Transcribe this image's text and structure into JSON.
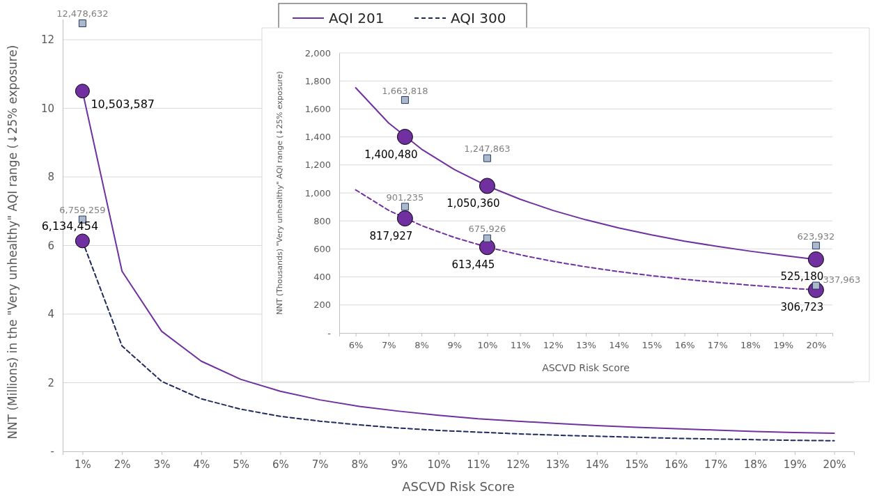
{
  "chart_data": [
    {
      "type": "line",
      "xlabel": "ASCVD Risk Score",
      "ylabel": "NNT (Millions) in the  \"Very unhealthy\" AQI range (↓25% exposure)",
      "x": [
        1,
        2,
        3,
        4,
        5,
        6,
        7,
        8,
        9,
        10,
        11,
        12,
        13,
        14,
        15,
        16,
        17,
        18,
        19,
        20
      ],
      "xlim": [
        0.5,
        20.5
      ],
      "xticks": [
        {
          "value": 1,
          "label": "1%"
        },
        {
          "value": 2,
          "label": "2%"
        },
        {
          "value": 3,
          "label": "3%"
        },
        {
          "value": 4,
          "label": "4%"
        },
        {
          "value": 5,
          "label": "5%"
        },
        {
          "value": 6,
          "label": "6%"
        },
        {
          "value": 7,
          "label": "7%"
        },
        {
          "value": 8,
          "label": "8%"
        },
        {
          "value": 9,
          "label": "9%"
        },
        {
          "value": 10,
          "label": "10%"
        },
        {
          "value": 11,
          "label": "11%"
        },
        {
          "value": 12,
          "label": "12%"
        },
        {
          "value": 13,
          "label": "13%"
        },
        {
          "value": 14,
          "label": "14%"
        },
        {
          "value": 15,
          "label": "15%"
        },
        {
          "value": 16,
          "label": "16%"
        },
        {
          "value": 17,
          "label": "17%"
        },
        {
          "value": 18,
          "label": "18%"
        },
        {
          "value": 19,
          "label": "19%"
        },
        {
          "value": 20,
          "label": "20%"
        }
      ],
      "ylim": [
        0,
        12.6
      ],
      "yticks": [
        {
          "value": 0,
          "label": "-"
        },
        2,
        4,
        6,
        8,
        10,
        12
      ],
      "grid": "y",
      "legend": "top",
      "series": [
        {
          "name": "AQI 201",
          "color": "#7030a0",
          "line_style": "solid",
          "marker": "none",
          "values": [
            10.5,
            5.25,
            3.5,
            2.63,
            2.1,
            1.75,
            1.5,
            1.31,
            1.17,
            1.05,
            0.95,
            0.88,
            0.81,
            0.75,
            0.7,
            0.66,
            0.62,
            0.58,
            0.55,
            0.53
          ]
        },
        {
          "name": "AQI 300",
          "color": "#1f2a5c",
          "line_style": "dashed",
          "marker": "none",
          "values": [
            6.13,
            3.07,
            2.04,
            1.53,
            1.23,
            1.02,
            0.88,
            0.77,
            0.68,
            0.61,
            0.56,
            0.51,
            0.47,
            0.44,
            0.41,
            0.38,
            0.36,
            0.34,
            0.32,
            0.31
          ]
        },
        {
          "type": "scatter",
          "color": "#7030a0",
          "marker": "circle",
          "x": [
            1,
            1
          ],
          "values": [
            10.503587,
            6.134454
          ]
        },
        {
          "type": "scatter",
          "color": "#adb9ca",
          "marker": "square",
          "x": [
            1,
            1
          ],
          "values": [
            12.478632,
            6.759259
          ]
        }
      ],
      "annotations": [
        {
          "text": "10,503,587",
          "x": 1,
          "y": 10.503587
        },
        {
          "text": "6,134,454",
          "x": 1,
          "y": 6.134454
        },
        {
          "text": "12,478,632",
          "x": 1,
          "y": 12.478632
        },
        {
          "text": "6,759,259",
          "x": 1,
          "y": 6.759259
        }
      ]
    },
    {
      "type": "line",
      "xlabel": "ASCVD Risk Score",
      "ylabel": "NNT (Thousands)  \"Very unhealthy\" AQI range (↓25% exposure)",
      "x": [
        6,
        7,
        8,
        9,
        10,
        11,
        12,
        13,
        14,
        15,
        16,
        17,
        18,
        19,
        20
      ],
      "xlim": [
        5.5,
        20.5
      ],
      "xticks": [
        {
          "value": 6,
          "label": "6%"
        },
        {
          "value": 7,
          "label": "7%"
        },
        {
          "value": 8,
          "label": "8%"
        },
        {
          "value": 9,
          "label": "9%"
        },
        {
          "value": 10,
          "label": "10%"
        },
        {
          "value": 11,
          "label": "11%"
        },
        {
          "value": 12,
          "label": "12%"
        },
        {
          "value": 13,
          "label": "13%"
        },
        {
          "value": 14,
          "label": "14%"
        },
        {
          "value": 15,
          "label": "15%"
        },
        {
          "value": 16,
          "label": "16%"
        },
        {
          "value": 17,
          "label": "17%"
        },
        {
          "value": 18,
          "label": "18%"
        },
        {
          "value": 19,
          "label": "19%"
        },
        {
          "value": 20,
          "label": "20%"
        }
      ],
      "ylim": [
        0,
        2000
      ],
      "yticks": [
        {
          "value": 0,
          "label": "-"
        },
        200,
        400,
        600,
        800,
        {
          "value": 1000,
          "label": "1,000"
        },
        {
          "value": 1200,
          "label": "1,200"
        },
        {
          "value": 1400,
          "label": "1,400"
        },
        {
          "value": 1600,
          "label": "1,600"
        },
        {
          "value": 1800,
          "label": "1,800"
        },
        {
          "value": 2000,
          "label": "2,000"
        }
      ],
      "grid": "y",
      "series": [
        {
          "color": "#7030a0",
          "line_style": "solid",
          "marker": "none",
          "values": [
            1751,
            1500,
            1313,
            1167,
            1050,
            955,
            875,
            808,
            750,
            700,
            656,
            618,
            584,
            553,
            525
          ]
        },
        {
          "color": "#7030a0",
          "line_style": "dashed",
          "marker": "none",
          "values": [
            1022,
            876,
            767,
            682,
            613,
            558,
            511,
            472,
            438,
            409,
            383,
            361,
            341,
            323,
            307
          ]
        },
        {
          "type": "scatter",
          "color": "#7030a0",
          "marker": "circle",
          "x": [
            7.5,
            10,
            20
          ],
          "values": [
            1400.48,
            1050.36,
            525.18
          ]
        },
        {
          "type": "scatter",
          "color": "#7030a0",
          "marker": "circle",
          "x": [
            7.5,
            10,
            20
          ],
          "values": [
            817.927,
            613.445,
            306.723
          ]
        },
        {
          "type": "scatter",
          "color": "#adb9ca",
          "marker": "square",
          "x": [
            7.5,
            10,
            20
          ],
          "values": [
            1663.818,
            1247.863,
            623.932
          ]
        },
        {
          "type": "scatter",
          "color": "#adb9ca",
          "marker": "square",
          "x": [
            7.5,
            10,
            20
          ],
          "values": [
            901.235,
            675.926,
            337.963
          ]
        }
      ],
      "annotations": [
        {
          "text": "1,400,480",
          "x": 7.5,
          "y": 1400.48
        },
        {
          "text": "1,050,360",
          "x": 10,
          "y": 1050.36
        },
        {
          "text": "525,180",
          "x": 20,
          "y": 525.18
        },
        {
          "text": "817,927",
          "x": 7.5,
          "y": 817.927
        },
        {
          "text": "613,445",
          "x": 10,
          "y": 613.445
        },
        {
          "text": "306,723",
          "x": 20,
          "y": 306.723
        },
        {
          "text": "1,663,818",
          "x": 7.5,
          "y": 1663.818
        },
        {
          "text": "1,247,863",
          "x": 10,
          "y": 1247.863
        },
        {
          "text": "623,932",
          "x": 20,
          "y": 623.932
        },
        {
          "text": "901,235",
          "x": 7.5,
          "y": 901.235
        },
        {
          "text": "675,926",
          "x": 10,
          "y": 675.926
        },
        {
          "text": "337,963",
          "x": 20,
          "y": 337.963
        }
      ]
    }
  ]
}
